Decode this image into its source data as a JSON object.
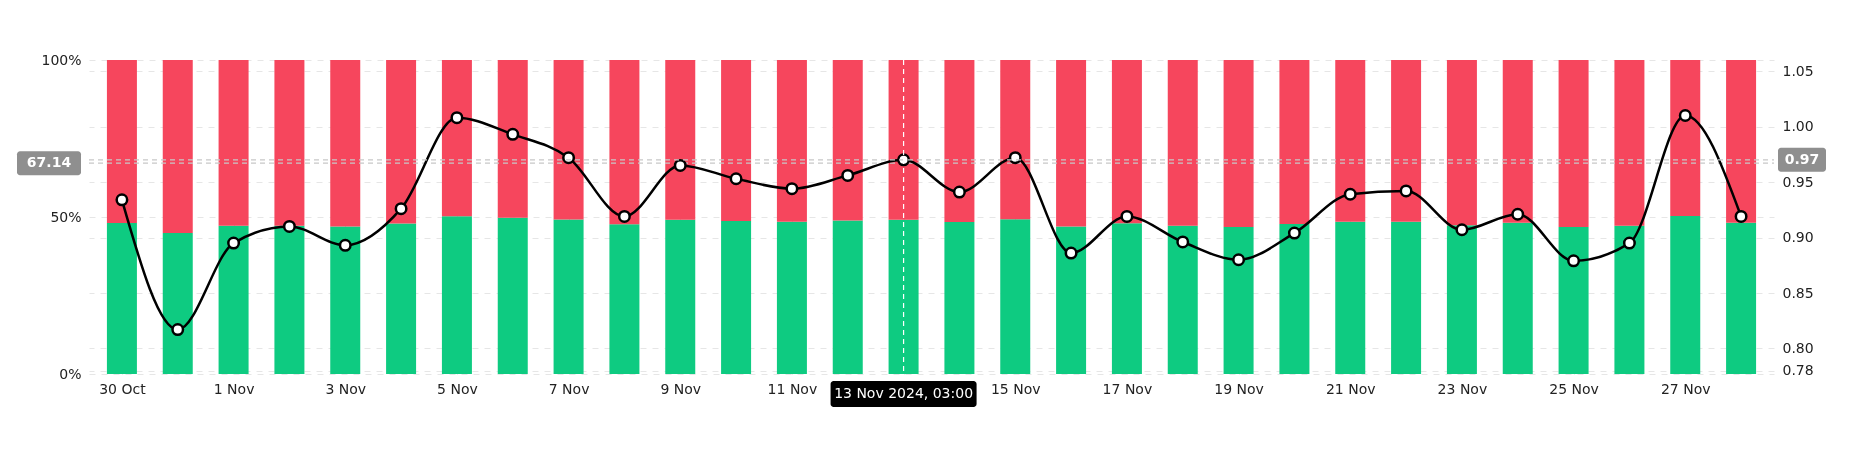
{
  "chart_data": {
    "type": "bar",
    "stacked": true,
    "x": [
      "2024-10-30",
      "2024-10-31",
      "2024-11-01",
      "2024-11-02",
      "2024-11-03",
      "2024-11-04",
      "2024-11-05",
      "2024-11-06",
      "2024-11-07",
      "2024-11-08",
      "2024-11-09",
      "2024-11-10",
      "2024-11-11",
      "2024-11-12",
      "2024-11-13",
      "2024-11-14",
      "2024-11-15",
      "2024-11-16",
      "2024-11-17",
      "2024-11-18",
      "2024-11-19",
      "2024-11-20",
      "2024-11-21",
      "2024-11-22",
      "2024-11-23",
      "2024-11-24",
      "2024-11-25",
      "2024-11-26",
      "2024-11-27",
      "2024-11-28"
    ],
    "series": [
      {
        "color": "#0ecb81",
        "values": [
          48.1,
          44.9,
          47.2,
          47.2,
          47.0,
          47.9,
          50.2,
          49.8,
          49.2,
          47.7,
          49.1,
          48.7,
          48.5,
          48.9,
          49.1,
          48.4,
          49.3,
          47.0,
          48.0,
          47.2,
          46.8,
          47.8,
          48.5,
          48.5,
          47.4,
          48.2,
          46.8,
          47.2,
          50.3,
          48.2
        ]
      },
      {
        "color": "#f6465d",
        "values": [
          51.9,
          55.1,
          52.8,
          52.8,
          53.0,
          52.1,
          49.8,
          50.2,
          50.8,
          52.3,
          50.9,
          51.3,
          51.5,
          51.1,
          50.9,
          51.6,
          50.7,
          53.0,
          52.0,
          52.8,
          53.2,
          52.2,
          51.5,
          51.5,
          52.6,
          51.8,
          53.2,
          52.8,
          49.7,
          51.8
        ]
      },
      {
        "type": "line",
        "axis": "y2",
        "color": "#000000",
        "marker": "circle",
        "values": [
          0.934,
          0.817,
          0.895,
          0.91,
          0.893,
          0.926,
          1.008,
          0.993,
          0.972,
          0.919,
          0.965,
          0.953,
          0.944,
          0.956,
          0.97,
          0.941,
          0.972,
          0.886,
          0.919,
          0.896,
          0.88,
          0.904,
          0.939,
          0.942,
          0.907,
          0.921,
          0.879,
          0.895,
          1.01,
          0.919
        ]
      }
    ],
    "xlim": [
      "2024-10-29T12:00",
      "2024-11-28T12:00"
    ],
    "xticks": [
      {
        "value": "2024-10-30",
        "label": "30 Oct"
      },
      {
        "value": "2024-11-01",
        "label": "1 Nov"
      },
      {
        "value": "2024-11-03",
        "label": "3 Nov"
      },
      {
        "value": "2024-11-05",
        "label": "5 Nov"
      },
      {
        "value": "2024-11-07",
        "label": "7 Nov"
      },
      {
        "value": "2024-11-09",
        "label": "9 Nov"
      },
      {
        "value": "2024-11-11",
        "label": "11 Nov"
      },
      {
        "value": "2024-11-13",
        "label": null
      },
      {
        "value": "2024-11-15",
        "label": "15 Nov"
      },
      {
        "value": "2024-11-17",
        "label": "17 Nov"
      },
      {
        "value": "2024-11-19",
        "label": "19 Nov"
      },
      {
        "value": "2024-11-21",
        "label": "21 Nov"
      },
      {
        "value": "2024-11-23",
        "label": "23 Nov"
      },
      {
        "value": "2024-11-25",
        "label": "25 Nov"
      },
      {
        "value": "2024-11-27",
        "label": "27 Nov"
      }
    ],
    "ylim": [
      0,
      100
    ],
    "yticks": [
      {
        "value": 0,
        "label": "0%"
      },
      {
        "value": 50,
        "label": "50%"
      },
      {
        "value": 100,
        "label": "100%"
      }
    ],
    "y2lim": [
      0.777,
      1.06
    ],
    "y2ticks": [
      0.78,
      {
        "value": 0.8,
        "label": "0.80"
      },
      0.85,
      {
        "value": 0.9,
        "label": "0.90"
      },
      0.95,
      {
        "value": 1.0,
        "label": "1.00"
      },
      1.05
    ],
    "ref_lines": [
      {
        "axis": "y",
        "value": 67.14,
        "label": "67.14",
        "color": "#c8c8c8",
        "line_style": "dashed"
      },
      {
        "axis": "y2",
        "value": 0.97,
        "label": "0.97",
        "color": "#c8c8c8",
        "line_style": "dashed"
      },
      {
        "axis": "x",
        "value": "2024-11-13",
        "label": "13 Nov 2024, 03:00",
        "color": "#ffffff",
        "line_style": "dashed"
      }
    ],
    "grid": true
  }
}
